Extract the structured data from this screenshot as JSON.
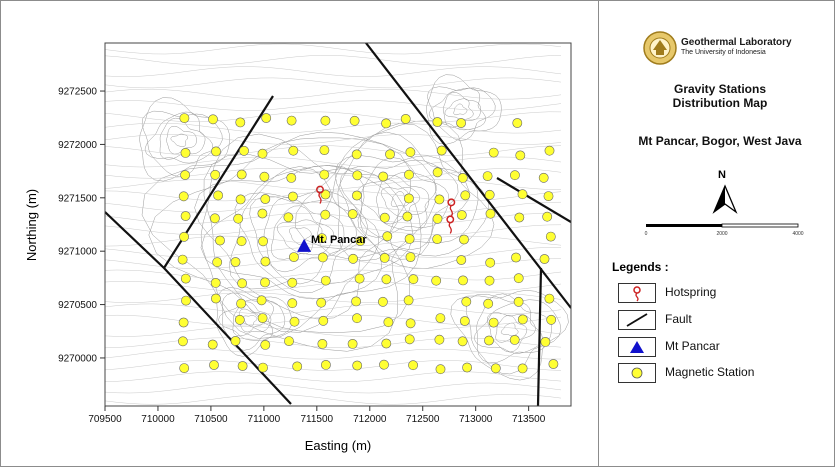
{
  "lab": {
    "name": "Geothermal Laboratory",
    "university": "The University of Indonesia"
  },
  "map": {
    "title_line1": "Gravity Stations",
    "title_line2": "Distribution Map",
    "location": "Mt Pancar, Bogor, West Java",
    "north": "N",
    "peak_label": "Mt. Pancar",
    "x_label": "Easting (m)",
    "y_label": "Northing (m)",
    "x_ticks": [
      709500,
      710000,
      710500,
      711000,
      711500,
      712000,
      712500,
      713000,
      713500
    ],
    "y_ticks": [
      9270000,
      9270500,
      9271000,
      9271500,
      9272000,
      9272500
    ],
    "x_range": [
      709500,
      713900
    ],
    "y_range": [
      9269550,
      9272950
    ],
    "scale_ticks": [
      "0",
      "2000",
      "4000"
    ],
    "peak": [
      711380,
      9271050
    ],
    "hotsprings": [
      [
        711530,
        9271540
      ],
      [
        712770,
        9271420
      ],
      [
        712760,
        9271260
      ]
    ]
  },
  "colors": {
    "station": "#ffff33",
    "fault": "#111111",
    "peak": "#1111cc",
    "hotspring": "#cc2222",
    "contour": "#9a9a9a"
  },
  "legend": {
    "title": "Legends :",
    "items": [
      {
        "label": "Hotspring",
        "icon": "hotspring-icon"
      },
      {
        "label": "Fault",
        "icon": "fault-line-icon"
      },
      {
        "label": "Mt Pancar",
        "icon": "triangle-icon"
      },
      {
        "label": "Magnetic Station",
        "icon": "circle-icon"
      }
    ]
  }
}
